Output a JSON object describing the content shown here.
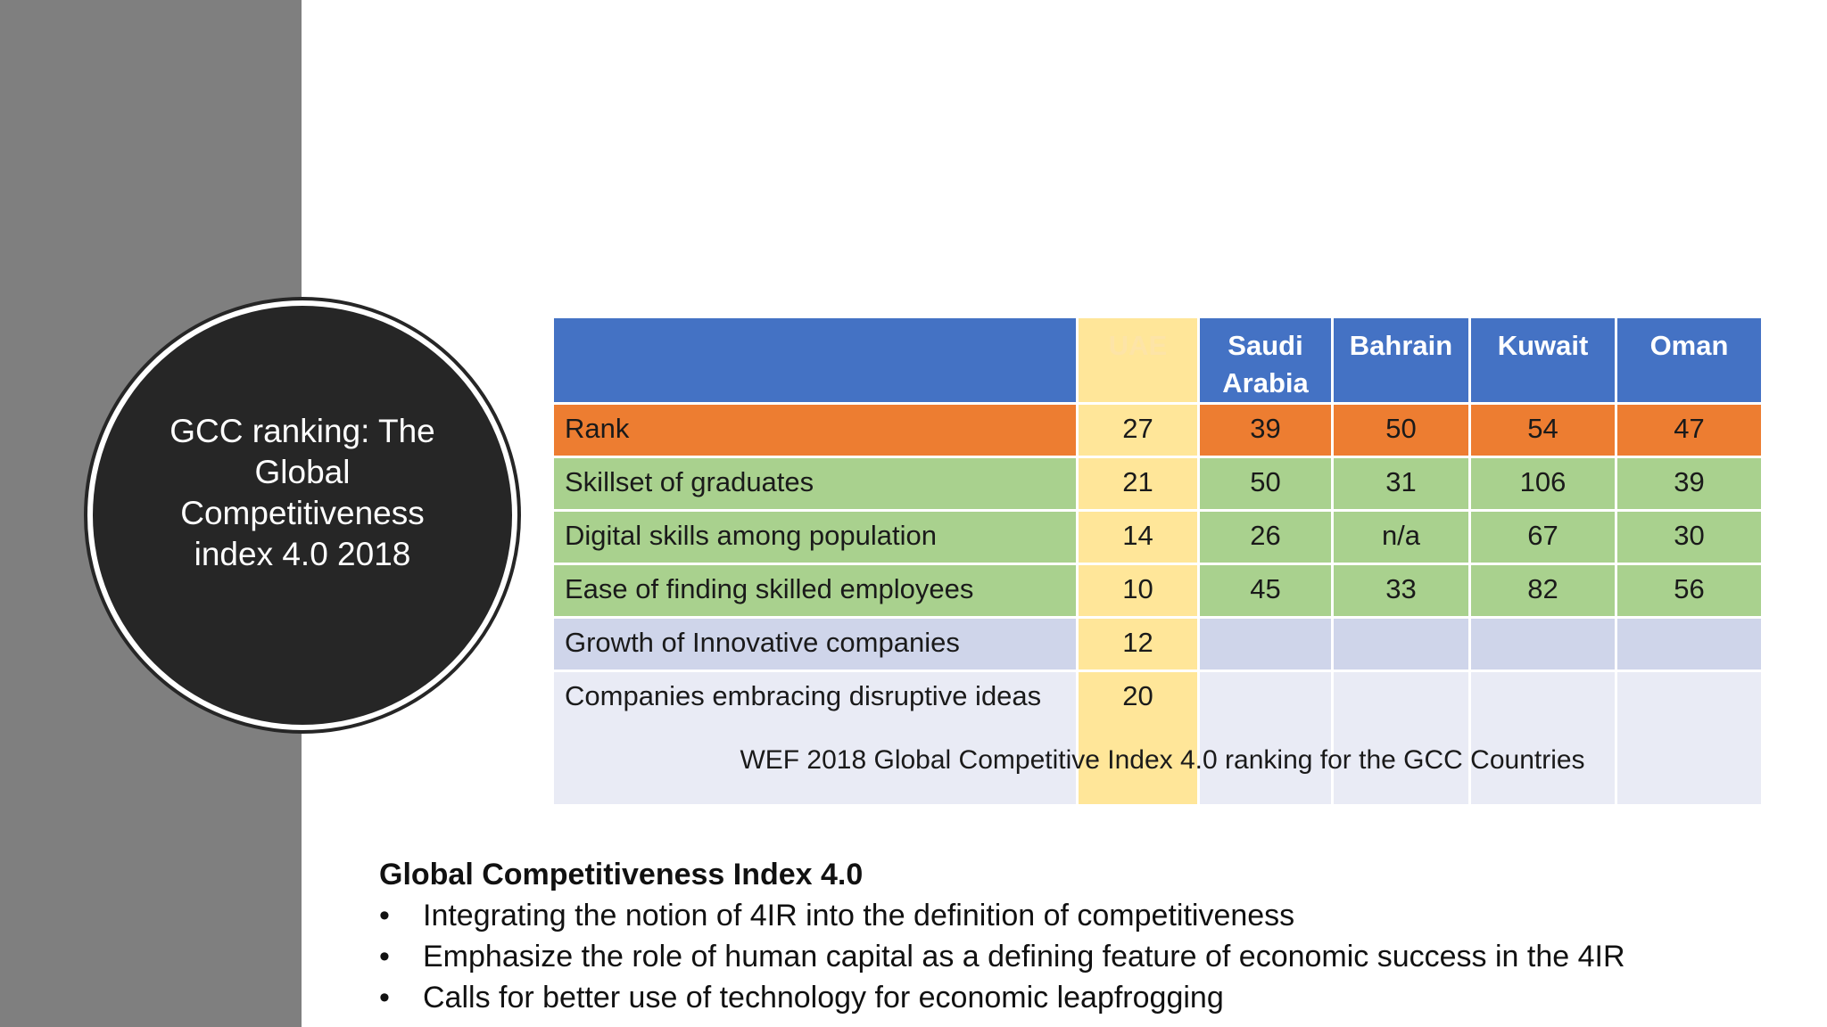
{
  "sidebar": {
    "title_lines": [
      "GCC ranking: The",
      "Global",
      "Competitiveness",
      "index 4.0 2018"
    ]
  },
  "table": {
    "headers": [
      "",
      "UAE",
      "Saudi Arabia",
      "Bahrain",
      "Kuwait",
      "Oman"
    ],
    "rows": [
      {
        "label": "Rank",
        "values": [
          "27",
          "39",
          "50",
          "54",
          "47"
        ]
      },
      {
        "label": "Skillset of graduates",
        "values": [
          "21",
          "50",
          "31",
          "106",
          "39"
        ]
      },
      {
        "label": "Digital skills among population",
        "values": [
          "14",
          "26",
          "n/a",
          "67",
          "30"
        ]
      },
      {
        "label": "Ease of finding skilled employees",
        "values": [
          "10",
          "45",
          "33",
          "82",
          "56"
        ]
      },
      {
        "label": "Growth of Innovative companies",
        "values": [
          "12",
          "",
          "",
          "",
          ""
        ]
      },
      {
        "label": "Companies embracing disruptive ideas",
        "values": [
          "20",
          "",
          "",
          "",
          ""
        ]
      }
    ],
    "caption": "WEF 2018 Global Competitive Index 4.0 ranking for the GCC Countries"
  },
  "notes": {
    "title": "Global Competitiveness Index 4.0",
    "bullet_glyph": "•",
    "items": [
      "Integrating the notion of 4IR into the definition of competitiveness",
      "Emphasize the role of human capital as a defining feature of economic success in the 4IR",
      "Calls for better use of technology for economic leapfrogging"
    ]
  },
  "colors": {
    "sidebar_gray": "#7f7f7f",
    "circle_dark": "#262626",
    "header_blue": "#4472c4",
    "uae_yellow": "#ffe699",
    "rank_orange": "#ed7d31",
    "skills_green": "#a9d18e",
    "innovation_lavender": "#cfd5ea",
    "disruptive_light": "#e9ebf5"
  }
}
